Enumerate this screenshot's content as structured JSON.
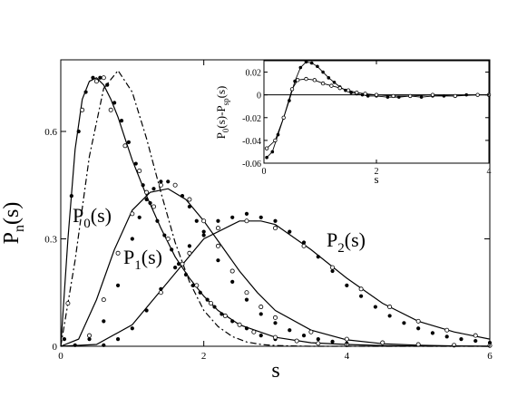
{
  "chart_data": [
    {
      "type": "scatter",
      "xlabel": "s",
      "ylabel": "P",
      "ylabel_sub": "n",
      "ylabel_suffix": "(s)",
      "xlim": [
        0,
        6
      ],
      "ylim": [
        0,
        0.8
      ],
      "xticks": [
        0,
        2,
        4,
        6
      ],
      "xtick_labels": [
        "0",
        "2",
        "4",
        "6"
      ],
      "yticks": [
        0,
        0.3,
        0.6
      ],
      "ytick_labels": [
        "0",
        "0.3",
        "0.6"
      ],
      "grid": false,
      "legend": "none",
      "curve_labels": [
        {
          "main": "P",
          "sub": "0",
          "suffix": "(s)"
        },
        {
          "main": "P",
          "sub": "1",
          "suffix": "(s)"
        },
        {
          "main": "P",
          "sub": "2",
          "suffix": "(s)"
        }
      ],
      "series": [
        {
          "style": "solid line",
          "x": [
            0,
            0.1,
            0.2,
            0.3,
            0.4,
            0.5,
            0.6,
            0.7,
            0.8,
            0.9,
            1.0,
            1.2,
            1.4,
            1.6,
            1.8,
            2.0,
            2.2,
            2.5,
            3.0,
            3.5,
            4.0,
            4.5,
            5.0,
            6.0
          ],
          "y": [
            0,
            0.3,
            0.55,
            0.69,
            0.74,
            0.75,
            0.73,
            0.69,
            0.64,
            0.58,
            0.52,
            0.42,
            0.33,
            0.25,
            0.19,
            0.14,
            0.1,
            0.06,
            0.025,
            0.01,
            0.005,
            0.002,
            0.001,
            0
          ]
        },
        {
          "style": "dash-dot line",
          "x": [
            0,
            0.2,
            0.4,
            0.6,
            0.8,
            1.0,
            1.2,
            1.4,
            1.6,
            1.8,
            2.0,
            2.2,
            2.4,
            2.6,
            2.8,
            3.0,
            3.5,
            6.0
          ],
          "y": [
            0,
            0.24,
            0.53,
            0.72,
            0.77,
            0.71,
            0.58,
            0.43,
            0.29,
            0.18,
            0.1,
            0.055,
            0.027,
            0.012,
            0.005,
            0.002,
            0,
            0
          ]
        },
        {
          "style": "solid line",
          "x": [
            0,
            0.25,
            0.5,
            0.75,
            1.0,
            1.25,
            1.5,
            1.75,
            2.0,
            2.25,
            2.5,
            2.75,
            3.0,
            3.5,
            4.0,
            4.5,
            5.0,
            5.5,
            6.0
          ],
          "y": [
            0,
            0.02,
            0.13,
            0.27,
            0.38,
            0.43,
            0.44,
            0.41,
            0.35,
            0.28,
            0.21,
            0.15,
            0.1,
            0.045,
            0.018,
            0.007,
            0.003,
            0.001,
            0
          ]
        },
        {
          "style": "solid line",
          "x": [
            0,
            0.5,
            1.0,
            1.5,
            2.0,
            2.5,
            2.8,
            3.0,
            3.5,
            4.0,
            4.5,
            5.0,
            5.5,
            6.0
          ],
          "y": [
            0,
            0.005,
            0.06,
            0.18,
            0.3,
            0.35,
            0.35,
            0.34,
            0.27,
            0.19,
            0.12,
            0.07,
            0.04,
            0.02
          ]
        },
        {
          "style": "filled dots",
          "x": [
            0.05,
            0.15,
            0.25,
            0.35,
            0.45,
            0.55,
            0.65,
            0.75,
            0.85,
            0.95,
            1.05,
            1.15,
            1.25,
            1.35,
            1.45,
            1.55,
            1.65,
            1.75,
            1.85,
            1.95,
            2.05,
            2.15,
            2.25,
            2.4,
            2.6,
            2.8,
            3.0
          ],
          "y": [
            0.02,
            0.42,
            0.6,
            0.71,
            0.75,
            0.75,
            0.73,
            0.68,
            0.63,
            0.57,
            0.51,
            0.45,
            0.4,
            0.35,
            0.31,
            0.27,
            0.23,
            0.2,
            0.17,
            0.15,
            0.13,
            0.11,
            0.09,
            0.07,
            0.05,
            0.03,
            0.02
          ]
        },
        {
          "style": "filled dots",
          "x": [
            0.2,
            0.4,
            0.6,
            0.8,
            1.0,
            1.1,
            1.2,
            1.3,
            1.4,
            1.5,
            1.6,
            1.7,
            1.8,
            1.9,
            2.0,
            2.2,
            2.4,
            2.6,
            2.8,
            3.0,
            3.2,
            3.4,
            3.6,
            3.8,
            4.0
          ],
          "y": [
            0.003,
            0.02,
            0.07,
            0.17,
            0.3,
            0.36,
            0.41,
            0.44,
            0.46,
            0.46,
            0.45,
            0.42,
            0.39,
            0.35,
            0.31,
            0.24,
            0.18,
            0.13,
            0.09,
            0.065,
            0.045,
            0.03,
            0.02,
            0.013,
            0.008
          ]
        },
        {
          "style": "filled dots",
          "x": [
            0.6,
            0.8,
            1.0,
            1.2,
            1.4,
            1.6,
            1.8,
            2.0,
            2.2,
            2.4,
            2.6,
            2.8,
            3.0,
            3.2,
            3.4,
            3.6,
            3.8,
            4.0,
            4.2,
            4.4,
            4.6,
            4.8,
            5.0,
            5.2,
            5.4,
            5.6,
            5.8,
            6.0
          ],
          "y": [
            0.003,
            0.02,
            0.05,
            0.1,
            0.16,
            0.22,
            0.28,
            0.32,
            0.35,
            0.36,
            0.37,
            0.36,
            0.35,
            0.32,
            0.29,
            0.25,
            0.21,
            0.17,
            0.14,
            0.11,
            0.085,
            0.065,
            0.05,
            0.037,
            0.027,
            0.02,
            0.015,
            0.01
          ]
        },
        {
          "style": "open circles",
          "x": [
            0.1,
            0.3,
            0.5,
            0.6,
            0.7,
            0.9,
            1.1,
            1.3,
            1.5,
            1.7,
            1.9,
            2.1,
            2.3,
            2.5,
            2.7,
            3.0,
            3.3,
            3.6,
            4.0
          ],
          "y": [
            0.12,
            0.66,
            0.74,
            0.75,
            0.66,
            0.56,
            0.49,
            0.39,
            0.3,
            0.23,
            0.17,
            0.12,
            0.085,
            0.06,
            0.04,
            0.025,
            0.015,
            0.008,
            0.004
          ]
        },
        {
          "style": "open circles",
          "x": [
            0.4,
            0.6,
            0.8,
            1.0,
            1.2,
            1.4,
            1.6,
            1.8,
            2.0,
            2.2,
            2.4,
            2.6,
            2.8,
            3.0,
            3.5,
            4.0,
            4.5,
            5.0,
            5.5,
            6.0
          ],
          "y": [
            0.03,
            0.13,
            0.26,
            0.37,
            0.43,
            0.45,
            0.45,
            0.41,
            0.35,
            0.28,
            0.21,
            0.15,
            0.11,
            0.08,
            0.04,
            0.02,
            0.01,
            0.005,
            0.003,
            0.002
          ]
        },
        {
          "style": "open circles",
          "x": [
            1.4,
            1.8,
            2.2,
            2.6,
            3.0,
            3.4,
            3.8,
            4.2,
            4.6,
            5.0,
            5.4,
            5.8
          ],
          "y": [
            0.15,
            0.26,
            0.33,
            0.35,
            0.33,
            0.28,
            0.22,
            0.16,
            0.11,
            0.07,
            0.045,
            0.03
          ]
        }
      ]
    },
    {
      "type": "line",
      "inset": true,
      "xlabel": "s",
      "ylabel": "P",
      "ylabel_parts": [
        "P",
        "0",
        "(s)-P",
        "sp",
        "(s)"
      ],
      "xlim": [
        0,
        4
      ],
      "ylim": [
        -0.06,
        0.03
      ],
      "xticks": [
        0,
        2,
        4
      ],
      "xtick_labels": [
        "0",
        "2",
        "4"
      ],
      "yticks": [
        0.02,
        0,
        -0.02,
        -0.04,
        -0.06
      ],
      "ytick_labels": [
        "0.02",
        "0",
        "-0.02",
        "-0.04",
        "-0.06"
      ],
      "zero_line": true,
      "grid": false,
      "series": [
        {
          "style": "filled dots with line",
          "x": [
            0.05,
            0.15,
            0.25,
            0.35,
            0.45,
            0.55,
            0.65,
            0.75,
            0.85,
            0.95,
            1.05,
            1.15,
            1.25,
            1.35,
            1.45,
            1.55,
            1.65,
            1.75,
            1.85,
            2.0,
            2.2,
            2.4,
            2.6,
            2.8,
            3.0,
            3.2,
            3.4,
            3.6,
            3.8,
            4.0
          ],
          "y": [
            -0.055,
            -0.05,
            -0.035,
            -0.02,
            -0.005,
            0.012,
            0.024,
            0.029,
            0.028,
            0.025,
            0.02,
            0.015,
            0.011,
            0.007,
            0.004,
            0.002,
            0.001,
            0.0,
            -0.001,
            -0.001,
            -0.002,
            -0.002,
            -0.001,
            -0.002,
            -0.001,
            -0.001,
            -0.001,
            0.0,
            0.0,
            0.0
          ]
        },
        {
          "style": "open circles with line",
          "x": [
            0.05,
            0.2,
            0.35,
            0.5,
            0.6,
            0.75,
            0.9,
            1.05,
            1.2,
            1.35,
            1.5,
            1.65,
            1.8,
            2.0,
            2.3,
            2.6,
            3.0,
            3.4,
            3.8,
            4.0
          ],
          "y": [
            -0.047,
            -0.04,
            -0.02,
            0.005,
            0.013,
            0.014,
            0.013,
            0.01,
            0.008,
            0.006,
            0.004,
            0.002,
            0.001,
            0.0,
            -0.001,
            -0.001,
            0.0,
            -0.001,
            0.0,
            0.0
          ]
        }
      ]
    }
  ]
}
